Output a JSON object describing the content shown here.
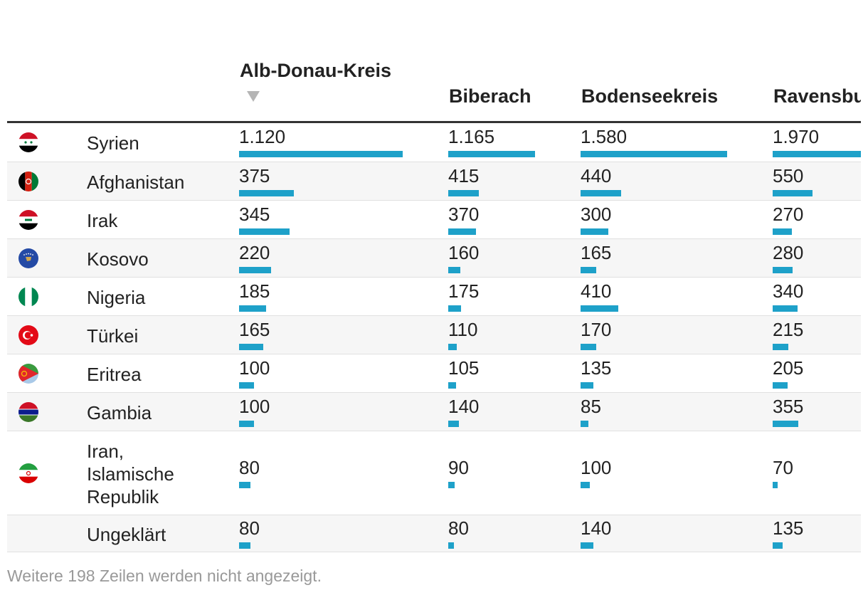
{
  "chart_data": {
    "type": "table",
    "columns": [
      "Alb-Donau-Kreis",
      "Biberach",
      "Bodenseekreis",
      "Ravensbu"
    ],
    "sorted_column": "Alb-Donau-Kreis",
    "sort_direction": "descending",
    "bar_color": "#1ea1c9",
    "rows": [
      {
        "country": "Syrien",
        "flag": "syria-flag-icon",
        "values": [
          "1.120",
          "1.165",
          "1.580",
          "1.970"
        ],
        "numbers": [
          1120,
          1165,
          1580,
          1970
        ]
      },
      {
        "country": "Afghanistan",
        "flag": "afghanistan-flag-icon",
        "values": [
          "375",
          "415",
          "440",
          "550"
        ],
        "numbers": [
          375,
          415,
          440,
          550
        ]
      },
      {
        "country": "Irak",
        "flag": "iraq-flag-icon",
        "values": [
          "345",
          "370",
          "300",
          "270"
        ],
        "numbers": [
          345,
          370,
          300,
          270
        ]
      },
      {
        "country": "Kosovo",
        "flag": "kosovo-flag-icon",
        "values": [
          "220",
          "160",
          "165",
          "280"
        ],
        "numbers": [
          220,
          160,
          165,
          280
        ]
      },
      {
        "country": "Nigeria",
        "flag": "nigeria-flag-icon",
        "values": [
          "185",
          "175",
          "410",
          "340"
        ],
        "numbers": [
          185,
          175,
          410,
          340
        ]
      },
      {
        "country": "Türkei",
        "flag": "turkey-flag-icon",
        "values": [
          "165",
          "110",
          "170",
          "215"
        ],
        "numbers": [
          165,
          110,
          170,
          215
        ]
      },
      {
        "country": "Eritrea",
        "flag": "eritrea-flag-icon",
        "values": [
          "100",
          "105",
          "135",
          "205"
        ],
        "numbers": [
          100,
          105,
          135,
          205
        ]
      },
      {
        "country": "Gambia",
        "flag": "gambia-flag-icon",
        "values": [
          "100",
          "140",
          "85",
          "355"
        ],
        "numbers": [
          100,
          140,
          85,
          355
        ]
      },
      {
        "country": "Iran, Islamische Republik",
        "flag": "iran-flag-icon",
        "values": [
          "80",
          "90",
          "100",
          "70"
        ],
        "numbers": [
          80,
          90,
          100,
          70
        ]
      },
      {
        "country": "Ungeklärt",
        "flag": "",
        "values": [
          "80",
          "80",
          "140",
          "135"
        ],
        "numbers": [
          80,
          80,
          140,
          135
        ]
      }
    ]
  },
  "footer": "Weitere 198 Zeilen werden nicht angezeigt."
}
